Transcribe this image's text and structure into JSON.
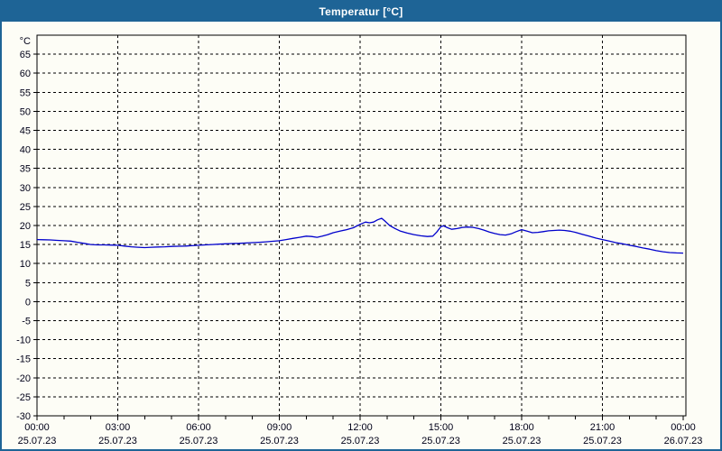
{
  "window": {
    "title": "Temperatur [°C]"
  },
  "colors": {
    "accent": "#1e6496",
    "titlebar_text": "#ffffff",
    "paper": "#fdfdf6",
    "grid": "#000000",
    "line": "#0000cc",
    "tick_text": "#000018"
  },
  "chart_data": {
    "type": "line",
    "title": "Temperatur [°C]",
    "ylabel": "°C",
    "xlabel": "",
    "ylim": [
      -30,
      70
    ],
    "ytick_step": 5,
    "ytick_label_min": -30,
    "ytick_label_max": 65,
    "grid": "dashed",
    "legend_position": "none",
    "x_axis": "time (hours of 25.07.23 00:00 through 26.07.23 00:00)",
    "xtick_minor_step_hours": 1,
    "xticks": [
      {
        "hour": 0,
        "time": "00:00",
        "date": "25.07.23"
      },
      {
        "hour": 3,
        "time": "03:00",
        "date": "25.07.23"
      },
      {
        "hour": 6,
        "time": "06:00",
        "date": "25.07.23"
      },
      {
        "hour": 9,
        "time": "09:00",
        "date": "25.07.23"
      },
      {
        "hour": 12,
        "time": "12:00",
        "date": "25.07.23"
      },
      {
        "hour": 15,
        "time": "15:00",
        "date": "25.07.23"
      },
      {
        "hour": 18,
        "time": "18:00",
        "date": "25.07.23"
      },
      {
        "hour": 21,
        "time": "21:00",
        "date": "25.07.23"
      },
      {
        "hour": 24,
        "time": "00:00",
        "date": "26.07.23"
      }
    ],
    "series_name": "Temperatur",
    "points": [
      [
        0.0,
        16.3
      ],
      [
        0.25,
        16.25
      ],
      [
        0.5,
        16.2
      ],
      [
        0.75,
        16.1
      ],
      [
        1.0,
        16.0
      ],
      [
        1.25,
        15.9
      ],
      [
        1.5,
        15.6
      ],
      [
        1.75,
        15.3
      ],
      [
        2.0,
        15.0
      ],
      [
        2.25,
        14.9
      ],
      [
        2.5,
        14.9
      ],
      [
        2.75,
        14.85
      ],
      [
        3.0,
        14.8
      ],
      [
        3.25,
        14.6
      ],
      [
        3.5,
        14.4
      ],
      [
        3.75,
        14.3
      ],
      [
        4.0,
        14.2
      ],
      [
        4.25,
        14.3
      ],
      [
        4.5,
        14.35
      ],
      [
        4.75,
        14.4
      ],
      [
        5.0,
        14.5
      ],
      [
        5.25,
        14.55
      ],
      [
        5.5,
        14.6
      ],
      [
        5.75,
        14.7
      ],
      [
        6.0,
        14.8
      ],
      [
        6.25,
        14.9
      ],
      [
        6.5,
        15.0
      ],
      [
        6.75,
        15.1
      ],
      [
        7.0,
        15.2
      ],
      [
        7.25,
        15.25
      ],
      [
        7.5,
        15.3
      ],
      [
        7.75,
        15.4
      ],
      [
        8.0,
        15.5
      ],
      [
        8.25,
        15.6
      ],
      [
        8.5,
        15.7
      ],
      [
        8.75,
        15.85
      ],
      [
        9.0,
        16.0
      ],
      [
        9.25,
        16.3
      ],
      [
        9.5,
        16.6
      ],
      [
        9.75,
        16.9
      ],
      [
        10.0,
        17.2
      ],
      [
        10.2,
        17.1
      ],
      [
        10.4,
        16.9
      ],
      [
        10.6,
        17.2
      ],
      [
        10.8,
        17.6
      ],
      [
        11.0,
        18.1
      ],
      [
        11.25,
        18.5
      ],
      [
        11.5,
        18.9
      ],
      [
        11.75,
        19.4
      ],
      [
        12.0,
        20.3
      ],
      [
        12.2,
        20.9
      ],
      [
        12.35,
        20.7
      ],
      [
        12.5,
        20.9
      ],
      [
        12.65,
        21.5
      ],
      [
        12.8,
        21.9
      ],
      [
        12.95,
        21.0
      ],
      [
        13.1,
        20.0
      ],
      [
        13.3,
        19.2
      ],
      [
        13.5,
        18.5
      ],
      [
        13.75,
        18.0
      ],
      [
        14.0,
        17.6
      ],
      [
        14.25,
        17.3
      ],
      [
        14.5,
        17.1
      ],
      [
        14.7,
        17.2
      ],
      [
        14.85,
        18.3
      ],
      [
        15.0,
        19.7
      ],
      [
        15.1,
        19.9
      ],
      [
        15.25,
        19.4
      ],
      [
        15.4,
        19.0
      ],
      [
        15.6,
        19.2
      ],
      [
        15.8,
        19.5
      ],
      [
        16.0,
        19.6
      ],
      [
        16.2,
        19.5
      ],
      [
        16.4,
        19.2
      ],
      [
        16.6,
        18.8
      ],
      [
        16.8,
        18.3
      ],
      [
        17.0,
        17.9
      ],
      [
        17.2,
        17.6
      ],
      [
        17.4,
        17.5
      ],
      [
        17.6,
        17.8
      ],
      [
        17.8,
        18.4
      ],
      [
        18.0,
        18.9
      ],
      [
        18.2,
        18.5
      ],
      [
        18.4,
        18.1
      ],
      [
        18.6,
        18.2
      ],
      [
        18.8,
        18.4
      ],
      [
        19.0,
        18.6
      ],
      [
        19.2,
        18.7
      ],
      [
        19.4,
        18.8
      ],
      [
        19.6,
        18.7
      ],
      [
        19.8,
        18.5
      ],
      [
        20.0,
        18.2
      ],
      [
        20.25,
        17.7
      ],
      [
        20.5,
        17.2
      ],
      [
        20.75,
        16.7
      ],
      [
        21.0,
        16.3
      ],
      [
        21.25,
        15.9
      ],
      [
        21.5,
        15.5
      ],
      [
        21.75,
        15.2
      ],
      [
        22.0,
        14.8
      ],
      [
        22.25,
        14.5
      ],
      [
        22.5,
        14.1
      ],
      [
        22.75,
        13.8
      ],
      [
        23.0,
        13.4
      ],
      [
        23.25,
        13.1
      ],
      [
        23.5,
        12.9
      ],
      [
        23.75,
        12.8
      ],
      [
        24.0,
        12.75
      ]
    ]
  }
}
